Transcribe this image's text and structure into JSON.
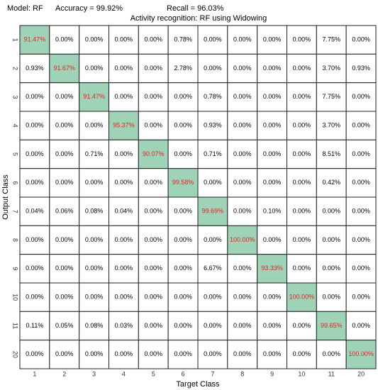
{
  "chart_data": {
    "type": "heatmap",
    "header": [
      "Model: RF",
      "Accuracy = 99.92%",
      "Recall = 96.03%"
    ],
    "title": "Activity recognition: RF using Widowing",
    "x_label": "Target Class",
    "y_label": "Output Class",
    "x_categories": [
      "1",
      "2",
      "3",
      "4",
      "5",
      "6",
      "7",
      "8",
      "9",
      "10",
      "11",
      "20"
    ],
    "y_categories": [
      "1",
      "2",
      "3",
      "4",
      "5",
      "6",
      "7",
      "8",
      "9",
      "10",
      "11",
      "20"
    ],
    "diagonal_color": "#9fd3b8",
    "cell_color": "#ffffff",
    "diagonal_text_color": "#e8201e",
    "text_color": "#000000",
    "values": [
      [
        91.47,
        0,
        0,
        0,
        0,
        0.78,
        0,
        0,
        0,
        0,
        7.75,
        0
      ],
      [
        0.93,
        91.67,
        0,
        0,
        0,
        2.78,
        0,
        0,
        0,
        0,
        3.7,
        0.93
      ],
      [
        0,
        0,
        91.47,
        0,
        0,
        0,
        0.78,
        0,
        0,
        0,
        7.75,
        0
      ],
      [
        0,
        0,
        0,
        95.37,
        0,
        0,
        0.93,
        0,
        0,
        0,
        3.7,
        0
      ],
      [
        0,
        0,
        0.71,
        0,
        90.07,
        0,
        0.71,
        0,
        0,
        0,
        8.51,
        0
      ],
      [
        0,
        0,
        0,
        0,
        0,
        99.58,
        0,
        0,
        0,
        0,
        0.42,
        0
      ],
      [
        0.04,
        0.06,
        0.08,
        0.04,
        0,
        0,
        99.69,
        0,
        0.1,
        0,
        0,
        0
      ],
      [
        0,
        0,
        0,
        0,
        0,
        0,
        0,
        100,
        0,
        0,
        0,
        0
      ],
      [
        0,
        0,
        0,
        0,
        0,
        0,
        6.67,
        0,
        93.33,
        0,
        0,
        0
      ],
      [
        0,
        0,
        0,
        0,
        0,
        0,
        0,
        0,
        0,
        100,
        0,
        0
      ],
      [
        0.11,
        0.05,
        0.08,
        0.03,
        0,
        0,
        0,
        0,
        0,
        0,
        99.65,
        0
      ],
      [
        0,
        0,
        0,
        0,
        0,
        0,
        0,
        0,
        0,
        0,
        0,
        100
      ]
    ],
    "value_labels": [
      [
        "91.47%",
        "0.00%",
        "0.00%",
        "0.00%",
        "0.00%",
        "0.78%",
        "0.00%",
        "0.00%",
        "0.00%",
        "0.00%",
        "7.75%",
        "0.00%"
      ],
      [
        "0.93%",
        "91.67%",
        "0.00%",
        "0.00%",
        "0.00%",
        "2.78%",
        "0.00%",
        "0.00%",
        "0.00%",
        "0.00%",
        "3.70%",
        "0.93%"
      ],
      [
        "0.00%",
        "0.00%",
        "91.47%",
        "0.00%",
        "0.00%",
        "0.00%",
        "0.78%",
        "0.00%",
        "0.00%",
        "0.00%",
        "7.75%",
        "0.00%"
      ],
      [
        "0.00%",
        "0.00%",
        "0.00%",
        "95.37%",
        "0.00%",
        "0.00%",
        "0.93%",
        "0.00%",
        "0.00%",
        "0.00%",
        "3.70%",
        "0.00%"
      ],
      [
        "0.00%",
        "0.00%",
        "0.71%",
        "0.00%",
        "90.07%",
        "0.00%",
        "0.71%",
        "0.00%",
        "0.00%",
        "0.00%",
        "8.51%",
        "0.00%"
      ],
      [
        "0.00%",
        "0.00%",
        "0.00%",
        "0.00%",
        "0.00%",
        "99.58%",
        "0.00%",
        "0.00%",
        "0.00%",
        "0.00%",
        "0.42%",
        "0.00%"
      ],
      [
        "0.04%",
        "0.06%",
        "0.08%",
        "0.04%",
        "0.00%",
        "0.00%",
        "99.69%",
        "0.00%",
        "0.10%",
        "0.00%",
        "0.00%",
        "0.00%"
      ],
      [
        "0.00%",
        "0.00%",
        "0.00%",
        "0.00%",
        "0.00%",
        "0.00%",
        "0.00%",
        "100.00%",
        "0.00%",
        "0.00%",
        "0.00%",
        "0.00%"
      ],
      [
        "0.00%",
        "0.00%",
        "0.00%",
        "0.00%",
        "0.00%",
        "0.00%",
        "6.67%",
        "0.00%",
        "93.33%",
        "0.00%",
        "0.00%",
        "0.00%"
      ],
      [
        "0.00%",
        "0.00%",
        "0.00%",
        "0.00%",
        "0.00%",
        "0.00%",
        "0.00%",
        "0.00%",
        "0.00%",
        "100.00%",
        "0.00%",
        "0.00%"
      ],
      [
        "0.11%",
        "0.05%",
        "0.08%",
        "0.03%",
        "0.00%",
        "0.00%",
        "0.00%",
        "0.00%",
        "0.00%",
        "0.00%",
        "99.65%",
        "0.00%"
      ],
      [
        "0.00%",
        "0.00%",
        "0.00%",
        "0.00%",
        "0.00%",
        "0.00%",
        "0.00%",
        "0.00%",
        "0.00%",
        "0.00%",
        "0.00%",
        "100.00%"
      ]
    ]
  }
}
